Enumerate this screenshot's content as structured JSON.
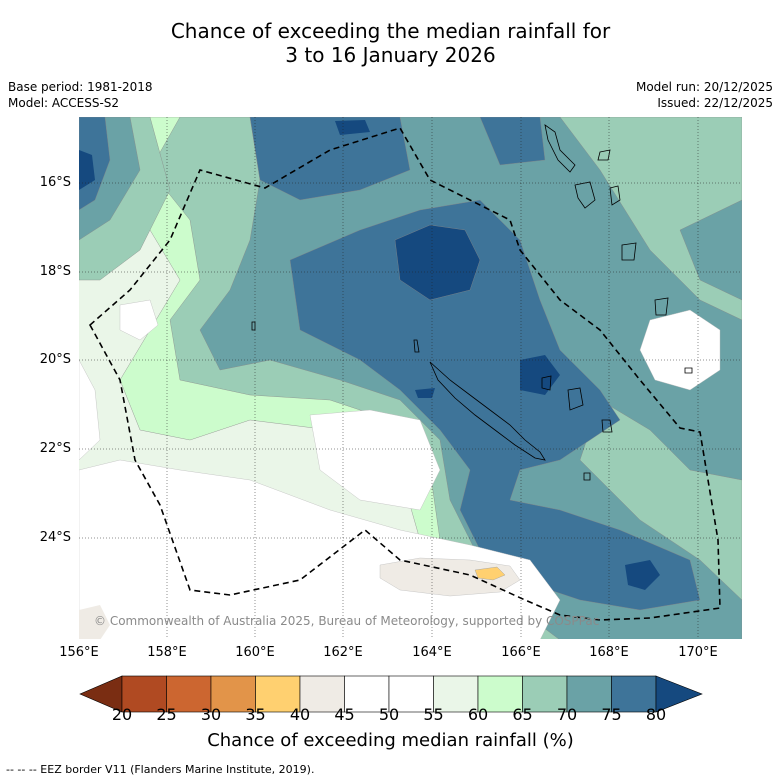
{
  "title": {
    "line1": "Chance of exceeding the median rainfall for",
    "line2": "3 to 16 January 2026"
  },
  "meta": {
    "base_period": "Base period: 1981-2018",
    "model": "Model: ACCESS-S2",
    "model_run": "Model run: 20/12/2025",
    "issued": "Issued: 22/12/2025"
  },
  "map": {
    "lat_labels": [
      "16°S",
      "18°S",
      "20°S",
      "22°S",
      "24°S"
    ],
    "lon_labels": [
      "156°E",
      "158°E",
      "160°E",
      "162°E",
      "164°E",
      "166°E",
      "168°E",
      "170°E"
    ],
    "copyright": "© Commonwealth of Australia 2025, Bureau of Meteorology, supported by COSPPac"
  },
  "colorbar": {
    "ticks": [
      "20",
      "25",
      "30",
      "35",
      "40",
      "45",
      "50",
      "55",
      "60",
      "65",
      "70",
      "75",
      "80"
    ],
    "colors": [
      "#7a2d12",
      "#b04a22",
      "#cc6630",
      "#e29449",
      "#ffd070",
      "#efebe5",
      "#ffffff",
      "#ffffff",
      "#eaf6e8",
      "#ccfccc",
      "#9bcdb6",
      "#6aa2a6",
      "#3e7499",
      "#15497f"
    ],
    "title": "Chance of exceeding median rainfall (%)"
  },
  "footer": "--  --  -- EEZ border V11 (Flanders Marine Institute, 2019)."
}
